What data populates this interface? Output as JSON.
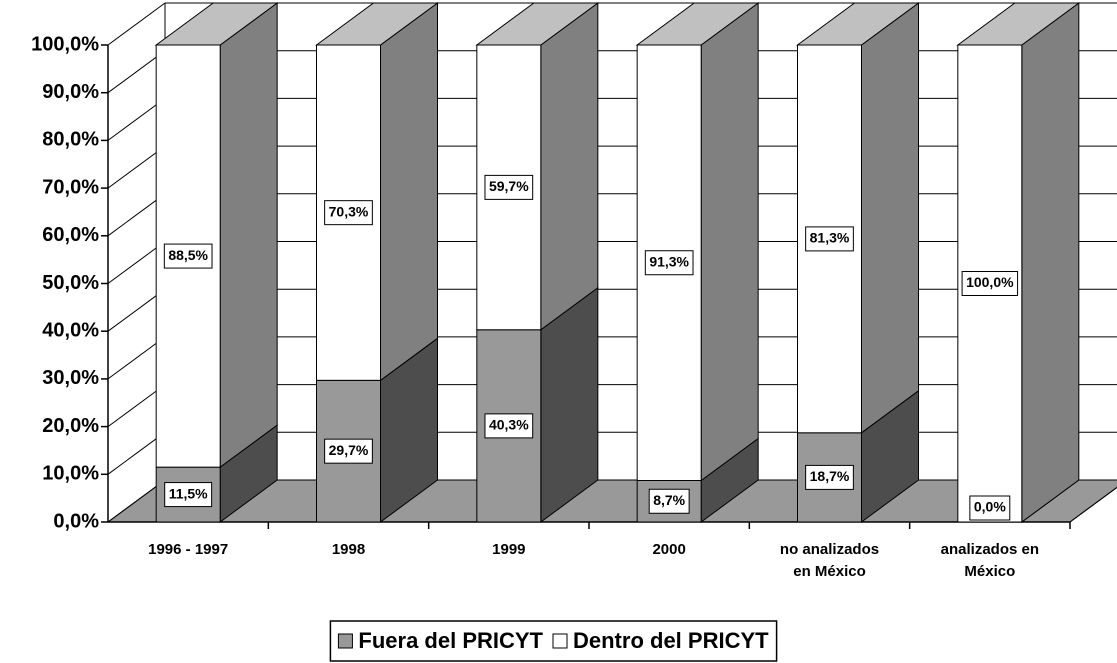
{
  "chart_data": {
    "type": "bar3d_stacked",
    "categories": [
      "1996 - 1997",
      "1998",
      "1999",
      "2000",
      "no analizados en México",
      "analizados en México"
    ],
    "series": [
      {
        "name": "Fuera del PRICYT",
        "color": "#999999",
        "side_color": "#4d4d4d",
        "values": [
          11.5,
          29.7,
          40.3,
          8.7,
          18.7,
          0.0
        ],
        "value_labels": [
          "11,5%",
          "29,7%",
          "40,3%",
          "8,7%",
          "18,7%",
          "0,0%"
        ]
      },
      {
        "name": "Dentro del PRICYT",
        "color": "#ffffff",
        "side_color": "#808080",
        "values": [
          88.5,
          70.3,
          59.7,
          91.3,
          81.3,
          100.0
        ],
        "value_labels": [
          "88,5%",
          "70,3%",
          "59,7%",
          "91,3%",
          "81,3%",
          "100,0%"
        ]
      }
    ],
    "ylim": [
      0,
      100
    ],
    "yticks": [
      {
        "value": 0,
        "label": "0,0%"
      },
      {
        "value": 10,
        "label": "10,0%"
      },
      {
        "value": 20,
        "label": "20,0%"
      },
      {
        "value": 30,
        "label": "30,0%"
      },
      {
        "value": 40,
        "label": "40,0%"
      },
      {
        "value": 50,
        "label": "50,0%"
      },
      {
        "value": 60,
        "label": "60,0%"
      },
      {
        "value": 70,
        "label": "70,0%"
      },
      {
        "value": 80,
        "label": "80,0%"
      },
      {
        "value": 90,
        "label": "90,0%"
      },
      {
        "value": 100,
        "label": "100,0%"
      }
    ],
    "grid": true,
    "legend": "bottom"
  }
}
